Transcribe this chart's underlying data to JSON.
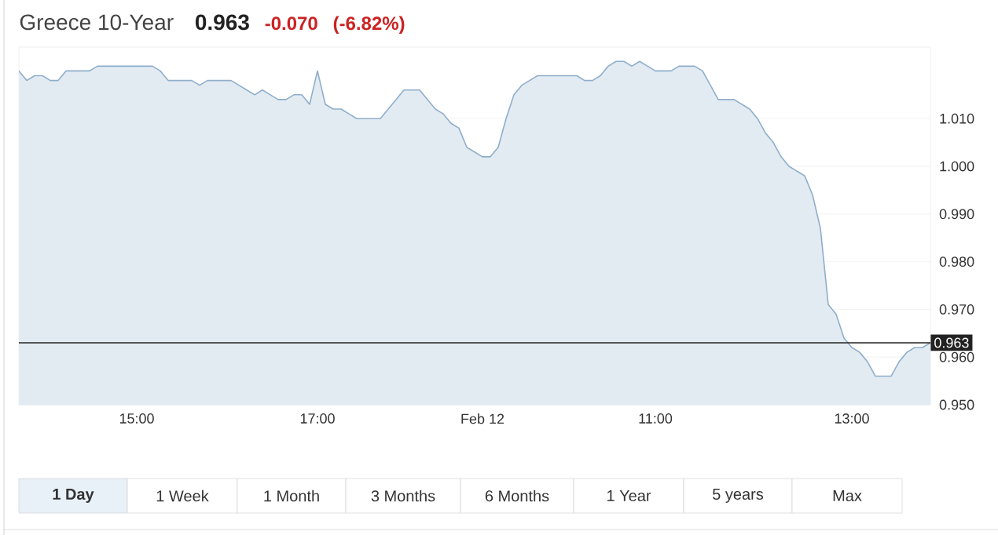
{
  "chart_data": {
    "type": "area",
    "title": "Greece 10-Year",
    "annotations": [
      "0.963",
      "-0.070",
      "(-6.82%)",
      "1 Day",
      "1 Week",
      "1 Month",
      "3 Months",
      "6 Months",
      "1 Year",
      "5 years",
      "Max"
    ],
    "categories": [
      null,
      null,
      null,
      null,
      null,
      null,
      null,
      null,
      null,
      null,
      null,
      null,
      null,
      null,
      null,
      "15:00",
      null,
      null,
      null,
      null,
      null,
      null,
      null,
      null,
      null,
      null,
      null,
      null,
      null,
      null,
      null,
      null,
      null,
      null,
      null,
      null,
      null,
      null,
      "17:00",
      null,
      null,
      null,
      null,
      null,
      null,
      null,
      null,
      null,
      null,
      null,
      null,
      null,
      null,
      null,
      null,
      null,
      null,
      null,
      null,
      "Feb 12",
      null,
      null,
      null,
      null,
      null,
      null,
      null,
      null,
      null,
      null,
      null,
      null,
      null,
      null,
      null,
      null,
      null,
      null,
      null,
      null,
      null,
      "11:00",
      null,
      null,
      null,
      null,
      null,
      null,
      null,
      null,
      null,
      null,
      null,
      null,
      null,
      null,
      null,
      null,
      null,
      null,
      null,
      null,
      null,
      null,
      null,
      null,
      "13:00",
      null,
      null,
      null,
      null,
      null,
      null,
      null,
      null,
      null,
      null
    ],
    "series": [
      {
        "color": "#8eaecb",
        "values": [
          1.02,
          1.018,
          1.019,
          1.019,
          1.018,
          1.018,
          1.02,
          1.02,
          1.02,
          1.02,
          1.021,
          1.021,
          1.021,
          1.021,
          1.021,
          1.021,
          1.021,
          1.021,
          1.02,
          1.018,
          1.018,
          1.018,
          1.018,
          1.017,
          1.018,
          1.018,
          1.018,
          1.018,
          1.017,
          1.016,
          1.015,
          1.016,
          1.015,
          1.014,
          1.014,
          1.015,
          1.015,
          1.013,
          1.02,
          1.013,
          1.012,
          1.012,
          1.011,
          1.01,
          1.01,
          1.01,
          1.01,
          1.012,
          1.014,
          1.016,
          1.016,
          1.016,
          1.014,
          1.012,
          1.011,
          1.009,
          1.008,
          1.004,
          1.003,
          1.002,
          1.002,
          1.004,
          1.01,
          1.015,
          1.017,
          1.018,
          1.019,
          1.019,
          1.019,
          1.019,
          1.019,
          1.019,
          1.018,
          1.018,
          1.019,
          1.021,
          1.022,
          1.022,
          1.021,
          1.022,
          1.021,
          1.02,
          1.02,
          1.02,
          1.021,
          1.021,
          1.021,
          1.02,
          1.017,
          1.014,
          1.014,
          1.014,
          1.013,
          1.012,
          1.01,
          1.007,
          1.005,
          1.002,
          1.0,
          0.999,
          0.998,
          0.994,
          0.987,
          0.971,
          0.969,
          0.964,
          0.962,
          0.961,
          0.959,
          0.956,
          0.956,
          0.956,
          0.959,
          0.961,
          0.962,
          0.962,
          0.963
        ]
      }
    ],
    "ylim": [
      0.95,
      1.025
    ],
    "yticks": [
      {
        "value": 0.95,
        "label": "0.950"
      },
      {
        "value": 0.96,
        "label": "0.960"
      },
      {
        "value": 0.97,
        "label": "0.970"
      },
      {
        "value": 0.98,
        "label": "0.980"
      },
      {
        "value": 0.99,
        "label": "0.990"
      },
      {
        "value": 1.0,
        "label": "1.000"
      },
      {
        "value": 1.01,
        "label": "1.010"
      }
    ],
    "grid": "y",
    "ref_lines": [
      {
        "axis": "y",
        "value": 0.963,
        "label": "0.963",
        "color": "#222222"
      }
    ]
  }
}
